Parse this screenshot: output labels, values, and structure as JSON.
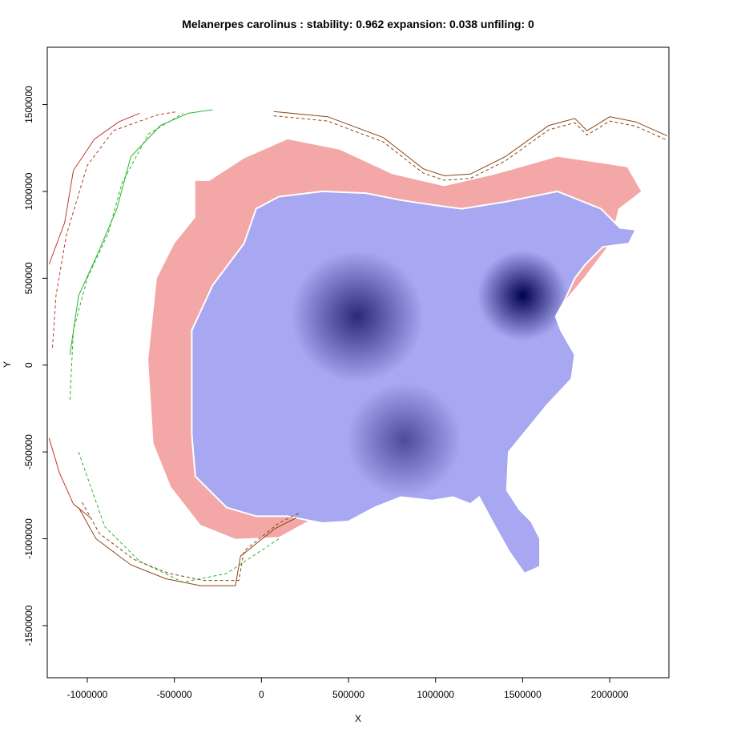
{
  "chart_data": {
    "type": "heatmap",
    "title": "Melanerpes carolinus : stability: 0.962 expansion: 0.038 unfiling: 0",
    "xlabel": "X",
    "ylabel": "Y",
    "xlim": [
      -1230000,
      2340000
    ],
    "ylim": [
      -1800000,
      1830000
    ],
    "x_ticks": [
      {
        "value": -1000000,
        "label": "-1000000"
      },
      {
        "value": -500000,
        "label": "-500000"
      },
      {
        "value": 0,
        "label": "0"
      },
      {
        "value": 500000,
        "label": "500000"
      },
      {
        "value": 1000000,
        "label": "1000000"
      },
      {
        "value": 1500000,
        "label": "1500000"
      },
      {
        "value": 2000000,
        "label": "2000000"
      }
    ],
    "y_ticks": [
      {
        "value": -1500000,
        "label": "-1500000"
      },
      {
        "value": -1000000,
        "label": "-1000000"
      },
      {
        "value": -500000,
        "label": "-500000"
      },
      {
        "value": 0,
        "label": "0"
      },
      {
        "value": 500000,
        "label": "500000"
      },
      {
        "value": 1000000,
        "label": "1000000"
      },
      {
        "value": 1500000,
        "label": "1500000"
      }
    ],
    "stability": 0.962,
    "expansion": 0.038,
    "unfiling": 0,
    "colors": {
      "expansion": "#f4a7a7",
      "stability_low": "#a7a7f2",
      "stability_high": "#000050",
      "native_env_solid": "#2db52d",
      "native_env_dashed": "#2db52d",
      "invasive_env_solid": "#c0392b",
      "invasive_env_dashed": "#c0392b",
      "outer_boundary": "#8b4513",
      "occupied_edge": "#ffffff",
      "axis": "#000000"
    },
    "density_peaks": [
      {
        "x": 1500000,
        "y": 400000,
        "strength": 1.0,
        "radius": 260000
      },
      {
        "x": 550000,
        "y": 280000,
        "strength": 0.75,
        "radius": 380000
      },
      {
        "x": 820000,
        "y": -430000,
        "strength": 0.55,
        "radius": 330000
      }
    ],
    "expansion_region": [
      [
        -300000,
        1060000
      ],
      [
        -100000,
        1190000
      ],
      [
        150000,
        1300000
      ],
      [
        450000,
        1240000
      ],
      [
        750000,
        1100000
      ],
      [
        1050000,
        1030000
      ],
      [
        1350000,
        1100000
      ],
      [
        1700000,
        1200000
      ],
      [
        2100000,
        1140000
      ],
      [
        2180000,
        1000000
      ],
      [
        2050000,
        900000
      ],
      [
        2000000,
        700000
      ],
      [
        1850000,
        500000
      ],
      [
        1600000,
        200000
      ],
      [
        1150000,
        -620000
      ],
      [
        700000,
        -780000
      ],
      [
        300000,
        -880000
      ],
      [
        100000,
        -990000
      ],
      [
        -150000,
        -1000000
      ],
      [
        -350000,
        -920000
      ],
      [
        -520000,
        -700000
      ],
      [
        -620000,
        -450000
      ],
      [
        -650000,
        30000
      ],
      [
        -600000,
        500000
      ],
      [
        -500000,
        700000
      ],
      [
        -380000,
        850000
      ],
      [
        -380000,
        1060000
      ]
    ],
    "stability_region": [
      [
        100000,
        970000
      ],
      [
        350000,
        1000000
      ],
      [
        600000,
        990000
      ],
      [
        800000,
        950000
      ],
      [
        1000000,
        920000
      ],
      [
        1150000,
        900000
      ],
      [
        1400000,
        940000
      ],
      [
        1700000,
        1000000
      ],
      [
        1950000,
        900000
      ],
      [
        2060000,
        790000
      ],
      [
        2150000,
        780000
      ],
      [
        2110000,
        700000
      ],
      [
        1960000,
        680000
      ],
      [
        1860000,
        580000
      ],
      [
        1800000,
        500000
      ],
      [
        1740000,
        370000
      ],
      [
        1690000,
        280000
      ],
      [
        1720000,
        200000
      ],
      [
        1800000,
        60000
      ],
      [
        1780000,
        -80000
      ],
      [
        1640000,
        -230000
      ],
      [
        1550000,
        -340000
      ],
      [
        1420000,
        -500000
      ],
      [
        1410000,
        -720000
      ],
      [
        1480000,
        -830000
      ],
      [
        1550000,
        -900000
      ],
      [
        1600000,
        -1000000
      ],
      [
        1600000,
        -1160000
      ],
      [
        1510000,
        -1200000
      ],
      [
        1420000,
        -1070000
      ],
      [
        1320000,
        -890000
      ],
      [
        1250000,
        -760000
      ],
      [
        1200000,
        -800000
      ],
      [
        1100000,
        -760000
      ],
      [
        980000,
        -780000
      ],
      [
        800000,
        -760000
      ],
      [
        650000,
        -820000
      ],
      [
        500000,
        -900000
      ],
      [
        350000,
        -910000
      ],
      [
        150000,
        -870000
      ],
      [
        -30000,
        -870000
      ],
      [
        -200000,
        -820000
      ],
      [
        -380000,
        -640000
      ],
      [
        -400000,
        -400000
      ],
      [
        -400000,
        200000
      ],
      [
        -280000,
        460000
      ],
      [
        -100000,
        700000
      ],
      [
        -30000,
        900000
      ]
    ],
    "invasive_env_solid": [
      [
        -1220000,
        580000
      ],
      [
        -1130000,
        820000
      ],
      [
        -1080000,
        1120000
      ],
      [
        -960000,
        1300000
      ],
      [
        -820000,
        1400000
      ],
      [
        -700000,
        1450000
      ]
    ],
    "invasive_env_solid_lower": [
      [
        -1220000,
        -420000
      ],
      [
        -1160000,
        -620000
      ],
      [
        -1080000,
        -800000
      ],
      [
        -980000,
        -880000
      ]
    ],
    "invasive_env_dashed": [
      [
        -1200000,
        100000
      ],
      [
        -1180000,
        400000
      ],
      [
        -1120000,
        750000
      ],
      [
        -1000000,
        1150000
      ],
      [
        -850000,
        1350000
      ],
      [
        -600000,
        1440000
      ],
      [
        -480000,
        1460000
      ]
    ],
    "native_env_solid": [
      [
        -1100000,
        60000
      ],
      [
        -1050000,
        400000
      ],
      [
        -950000,
        620000
      ],
      [
        -830000,
        900000
      ],
      [
        -750000,
        1200000
      ],
      [
        -580000,
        1380000
      ],
      [
        -420000,
        1450000
      ],
      [
        -280000,
        1470000
      ]
    ],
    "native_env_dashed": [
      [
        -1100000,
        -200000
      ],
      [
        -1080000,
        200000
      ],
      [
        -1000000,
        500000
      ],
      [
        -880000,
        760000
      ],
      [
        -800000,
        1050000
      ],
      [
        -650000,
        1330000
      ],
      [
        -450000,
        1450000
      ]
    ],
    "lower_env_curve": [
      [
        -1050000,
        -500000
      ],
      [
        -900000,
        -930000
      ],
      [
        -700000,
        -1130000
      ],
      [
        -450000,
        -1250000
      ],
      [
        -200000,
        -1200000
      ],
      [
        100000,
        -1000000
      ]
    ],
    "outer_boundary_top": [
      [
        70000,
        1460000
      ],
      [
        380000,
        1430000
      ],
      [
        700000,
        1310000
      ],
      [
        930000,
        1130000
      ],
      [
        1050000,
        1090000
      ],
      [
        1200000,
        1100000
      ],
      [
        1400000,
        1200000
      ],
      [
        1650000,
        1380000
      ],
      [
        1800000,
        1420000
      ],
      [
        1870000,
        1350000
      ],
      [
        1920000,
        1380000
      ],
      [
        2000000,
        1430000
      ],
      [
        2150000,
        1400000
      ],
      [
        2330000,
        1320000
      ]
    ],
    "outer_boundary_bottom": [
      [
        -1050000,
        -820000
      ],
      [
        -950000,
        -1000000
      ],
      [
        -750000,
        -1150000
      ],
      [
        -550000,
        -1230000
      ],
      [
        -350000,
        -1270000
      ],
      [
        -150000,
        -1270000
      ],
      [
        -120000,
        -1100000
      ],
      [
        80000,
        -940000
      ],
      [
        200000,
        -880000
      ]
    ]
  }
}
